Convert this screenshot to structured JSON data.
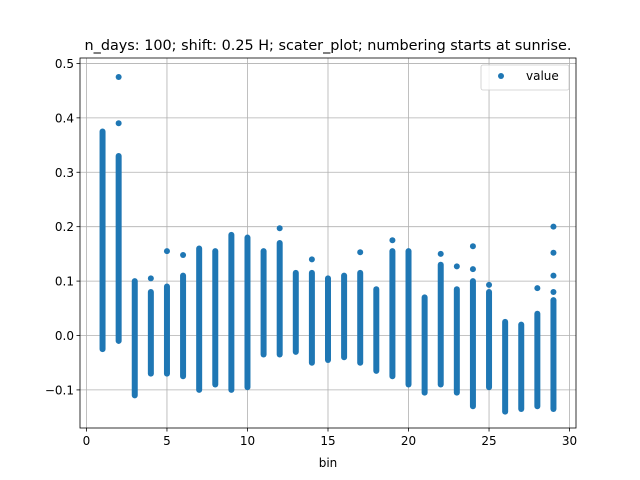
{
  "chart_data": {
    "type": "scatter",
    "title": "n_days: 100; shift: 0.25 H; scater_plot; numbering starts at sunrise.",
    "xlabel": "bin",
    "ylabel": "",
    "xlim": [
      -0.4,
      30.4
    ],
    "ylim": [
      -0.17,
      0.51
    ],
    "xticks": [
      0,
      5,
      10,
      15,
      20,
      25,
      30
    ],
    "yticks": [
      -0.1,
      0.0,
      0.1,
      0.2,
      0.3,
      0.4,
      0.5
    ],
    "xtick_labels": [
      "0",
      "5",
      "10",
      "15",
      "20",
      "25",
      "30"
    ],
    "ytick_labels": [
      "−0.1",
      "0.0",
      "0.1",
      "0.2",
      "0.3",
      "0.4",
      "0.5"
    ],
    "grid": true,
    "legend_position": "top-right",
    "series": [
      {
        "name": "value",
        "color": "#1f77b4",
        "marker": "circle",
        "bins": [
          {
            "x": 1,
            "min": -0.025,
            "max": 0.375,
            "outliers": []
          },
          {
            "x": 2,
            "min": -0.01,
            "max": 0.33,
            "outliers": [
              0.475,
              0.39
            ]
          },
          {
            "x": 3,
            "min": -0.11,
            "max": 0.1,
            "outliers": []
          },
          {
            "x": 4,
            "min": -0.07,
            "max": 0.08,
            "outliers": [
              0.105
            ]
          },
          {
            "x": 5,
            "min": -0.07,
            "max": 0.09,
            "outliers": [
              0.155
            ]
          },
          {
            "x": 6,
            "min": -0.075,
            "max": 0.11,
            "outliers": [
              0.148
            ]
          },
          {
            "x": 7,
            "min": -0.1,
            "max": 0.16,
            "outliers": []
          },
          {
            "x": 8,
            "min": -0.09,
            "max": 0.155,
            "outliers": []
          },
          {
            "x": 9,
            "min": -0.1,
            "max": 0.185,
            "outliers": []
          },
          {
            "x": 10,
            "min": -0.095,
            "max": 0.18,
            "outliers": []
          },
          {
            "x": 11,
            "min": -0.035,
            "max": 0.155,
            "outliers": []
          },
          {
            "x": 12,
            "min": -0.035,
            "max": 0.17,
            "outliers": [
              0.197
            ]
          },
          {
            "x": 13,
            "min": -0.03,
            "max": 0.115,
            "outliers": []
          },
          {
            "x": 14,
            "min": -0.05,
            "max": 0.115,
            "outliers": [
              0.14
            ]
          },
          {
            "x": 15,
            "min": -0.045,
            "max": 0.105,
            "outliers": []
          },
          {
            "x": 16,
            "min": -0.04,
            "max": 0.11,
            "outliers": []
          },
          {
            "x": 17,
            "min": -0.05,
            "max": 0.115,
            "outliers": [
              0.153
            ]
          },
          {
            "x": 18,
            "min": -0.065,
            "max": 0.085,
            "outliers": []
          },
          {
            "x": 19,
            "min": -0.075,
            "max": 0.155,
            "outliers": [
              0.175
            ]
          },
          {
            "x": 20,
            "min": -0.09,
            "max": 0.155,
            "outliers": []
          },
          {
            "x": 21,
            "min": -0.105,
            "max": 0.07,
            "outliers": []
          },
          {
            "x": 22,
            "min": -0.09,
            "max": 0.13,
            "outliers": [
              0.15
            ]
          },
          {
            "x": 23,
            "min": -0.105,
            "max": 0.085,
            "outliers": [
              0.127
            ]
          },
          {
            "x": 24,
            "min": -0.13,
            "max": 0.1,
            "outliers": [
              0.164,
              0.122
            ]
          },
          {
            "x": 25,
            "min": -0.095,
            "max": 0.08,
            "outliers": [
              0.093
            ]
          },
          {
            "x": 26,
            "min": -0.14,
            "max": 0.025,
            "outliers": []
          },
          {
            "x": 27,
            "min": -0.135,
            "max": 0.02,
            "outliers": []
          },
          {
            "x": 28,
            "min": -0.13,
            "max": 0.04,
            "outliers": [
              0.087
            ]
          },
          {
            "x": 29,
            "min": -0.135,
            "max": 0.065,
            "outliers": [
              0.2,
              0.152,
              0.11,
              0.08
            ]
          }
        ]
      }
    ]
  }
}
